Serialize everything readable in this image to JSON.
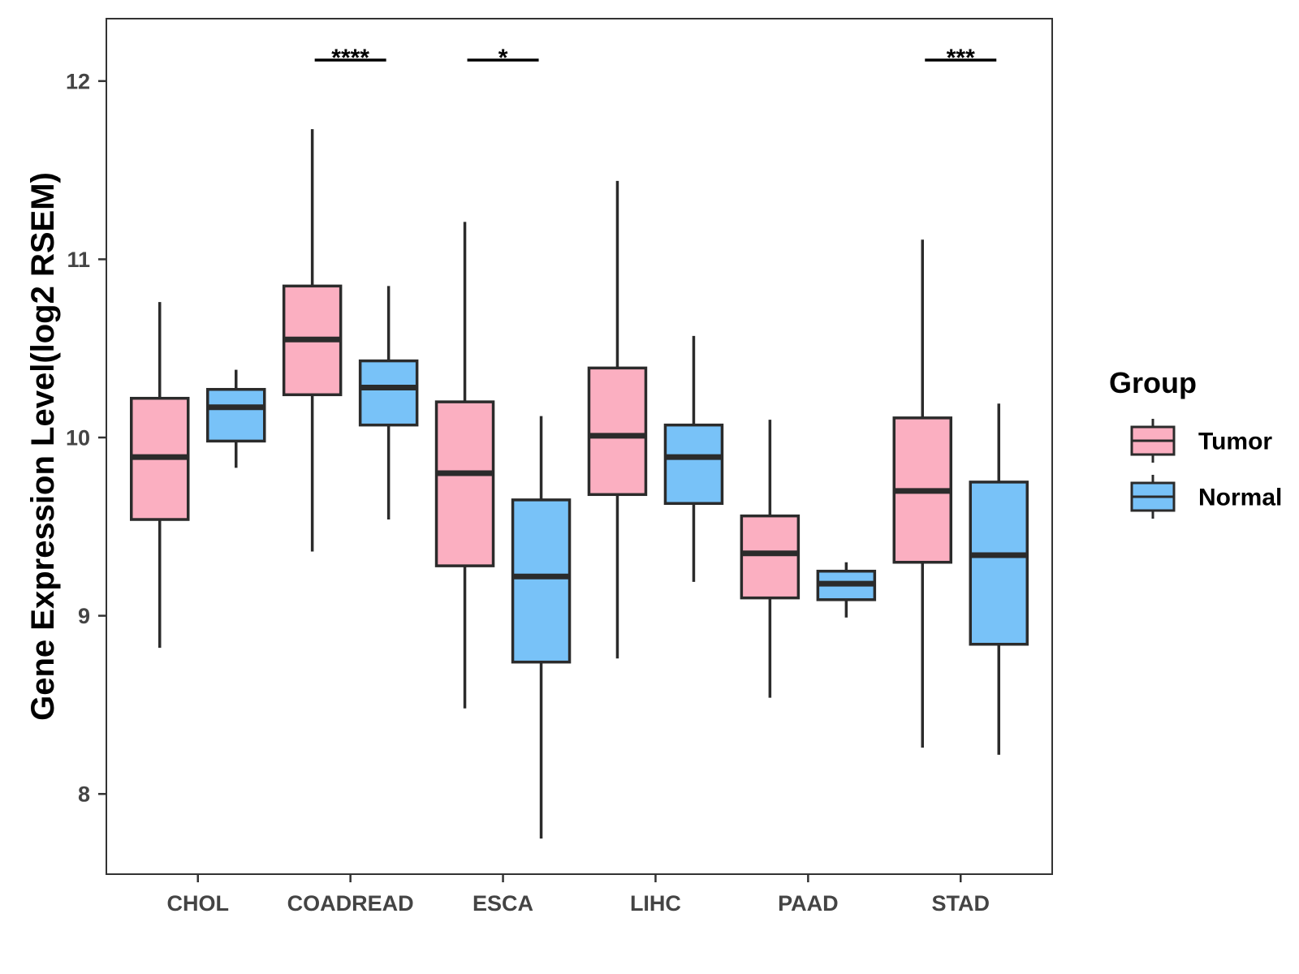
{
  "chart_data": {
    "type": "boxplot",
    "title": "",
    "xlabel": "",
    "ylabel": "Gene Expression Level(log2 RSEM)",
    "ylim": [
      7.55,
      12.35
    ],
    "yticks": [
      8,
      9,
      10,
      11,
      12
    ],
    "grid": false,
    "legend_position": "right",
    "categories": [
      "CHOL",
      "COADREAD",
      "ESCA",
      "LIHC",
      "PAAD",
      "STAD"
    ],
    "legend": {
      "title": "Group"
    },
    "series": [
      {
        "name": "Tumor",
        "color": "#FBAFC1",
        "boxes": [
          {
            "min": 8.82,
            "q1": 9.54,
            "median": 9.89,
            "q3": 10.22,
            "max": 10.76
          },
          {
            "min": 9.36,
            "q1": 10.24,
            "median": 10.55,
            "q3": 10.85,
            "max": 11.73
          },
          {
            "min": 8.48,
            "q1": 9.28,
            "median": 9.8,
            "q3": 10.2,
            "max": 11.21
          },
          {
            "min": 8.76,
            "q1": 9.68,
            "median": 10.01,
            "q3": 10.39,
            "max": 11.44
          },
          {
            "min": 8.54,
            "q1": 9.1,
            "median": 9.35,
            "q3": 9.56,
            "max": 10.1
          },
          {
            "min": 8.26,
            "q1": 9.3,
            "median": 9.7,
            "q3": 10.11,
            "max": 11.11
          }
        ]
      },
      {
        "name": "Normal",
        "color": "#78C2F8",
        "boxes": [
          {
            "min": 9.83,
            "q1": 9.98,
            "median": 10.17,
            "q3": 10.27,
            "max": 10.38
          },
          {
            "min": 9.54,
            "q1": 10.07,
            "median": 10.28,
            "q3": 10.43,
            "max": 10.85
          },
          {
            "min": 7.75,
            "q1": 8.74,
            "median": 9.22,
            "q3": 9.65,
            "max": 10.12
          },
          {
            "min": 9.19,
            "q1": 9.63,
            "median": 9.89,
            "q3": 10.07,
            "max": 10.57
          },
          {
            "min": 8.99,
            "q1": 9.09,
            "median": 9.18,
            "q3": 9.25,
            "max": 9.3
          },
          {
            "min": 8.22,
            "q1": 8.84,
            "median": 9.34,
            "q3": 9.75,
            "max": 10.19
          }
        ]
      }
    ],
    "significance": [
      {
        "category": "COADREAD",
        "label": "****"
      },
      {
        "category": "ESCA",
        "label": "*"
      },
      {
        "category": "STAD",
        "label": "***"
      }
    ]
  }
}
